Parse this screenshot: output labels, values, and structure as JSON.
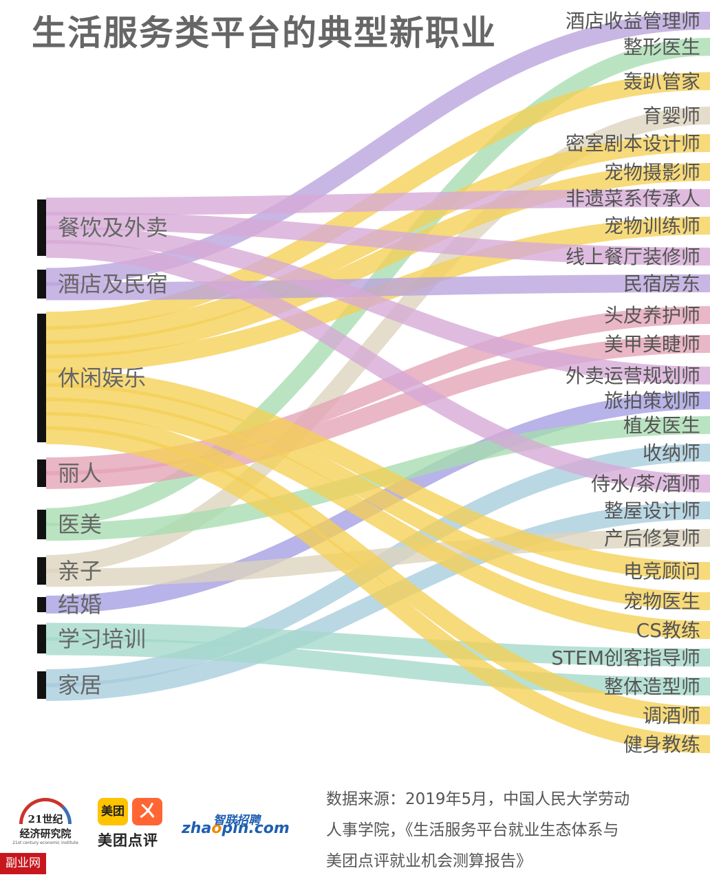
{
  "title": "生活服务类平台的典型新职业",
  "chart_data": {
    "type": "sankey",
    "sources": [
      {
        "id": "catering",
        "label": "餐饮及外卖"
      },
      {
        "id": "hotel",
        "label": "酒店及民宿"
      },
      {
        "id": "leisure",
        "label": "休闲娱乐"
      },
      {
        "id": "beauty",
        "label": "丽人"
      },
      {
        "id": "medical",
        "label": "医美"
      },
      {
        "id": "parent",
        "label": "亲子"
      },
      {
        "id": "wedding",
        "label": "结婚"
      },
      {
        "id": "education",
        "label": "学习培训"
      },
      {
        "id": "home",
        "label": "家居"
      }
    ],
    "targets": [
      {
        "label": "酒店收益管理师",
        "source": "hotel"
      },
      {
        "label": "整形医生",
        "source": "medical"
      },
      {
        "label": "轰趴管家",
        "source": "leisure"
      },
      {
        "label": "育婴师",
        "source": "parent"
      },
      {
        "label": "密室剧本设计师",
        "source": "leisure"
      },
      {
        "label": "宠物摄影师",
        "source": "leisure"
      },
      {
        "label": "非遗菜系传承人",
        "source": "catering"
      },
      {
        "label": "宠物训练师",
        "source": "leisure"
      },
      {
        "label": "线上餐厅装修师",
        "source": "catering"
      },
      {
        "label": "民宿房东",
        "source": "hotel"
      },
      {
        "label": "头皮养护师",
        "source": "beauty"
      },
      {
        "label": "美甲美睫师",
        "source": "beauty"
      },
      {
        "label": "外卖运营规划师",
        "source": "catering"
      },
      {
        "label": "旅拍策划师",
        "source": "wedding"
      },
      {
        "label": "植发医生",
        "source": "medical"
      },
      {
        "label": "收纳师",
        "source": "home"
      },
      {
        "label": "侍水/茶/酒师",
        "source": "catering"
      },
      {
        "label": "整屋设计师",
        "source": "home"
      },
      {
        "label": "产后修复师",
        "source": "parent"
      },
      {
        "label": "电竞顾问",
        "source": "leisure"
      },
      {
        "label": "宠物医生",
        "source": "leisure"
      },
      {
        "label": "CS教练",
        "source": "leisure"
      },
      {
        "label": "STEM创客指导师",
        "source": "education"
      },
      {
        "label": "整体造型师",
        "source": "education"
      },
      {
        "label": "调酒师",
        "source": "leisure"
      },
      {
        "label": "健身教练",
        "source": "leisure"
      }
    ],
    "colors": {
      "catering": "#d6a9d6",
      "hotel": "#b9a3dc",
      "leisure": "#f5cf55",
      "beauty": "#e4a3b6",
      "medical": "#a6dcb0",
      "parent": "#dcd3bd",
      "wedding": "#a49ee2",
      "education": "#a3d9c9",
      "home": "#a6ccdc"
    }
  },
  "footer": {
    "logo_21_line1": "21世纪",
    "logo_21_line2": "经济研究院",
    "logo_21_line3": "21st century economic institute",
    "logo_mt_box": "美团",
    "logo_dp_box": "ㄨ",
    "logo_mt_name": "美团点评",
    "logo_zp_cn": "智联招聘",
    "logo_zp_en_a": "zha",
    "logo_zp_en_o": "o",
    "logo_zp_en_b": "pin.com",
    "source_line1": "数据来源：2019年5月，中国人民大学劳动",
    "source_line2": "人事学院，《生活服务平台就业生态体系与",
    "source_line3": "美团点评就业机会测算报告》"
  },
  "watermark": "副业网"
}
